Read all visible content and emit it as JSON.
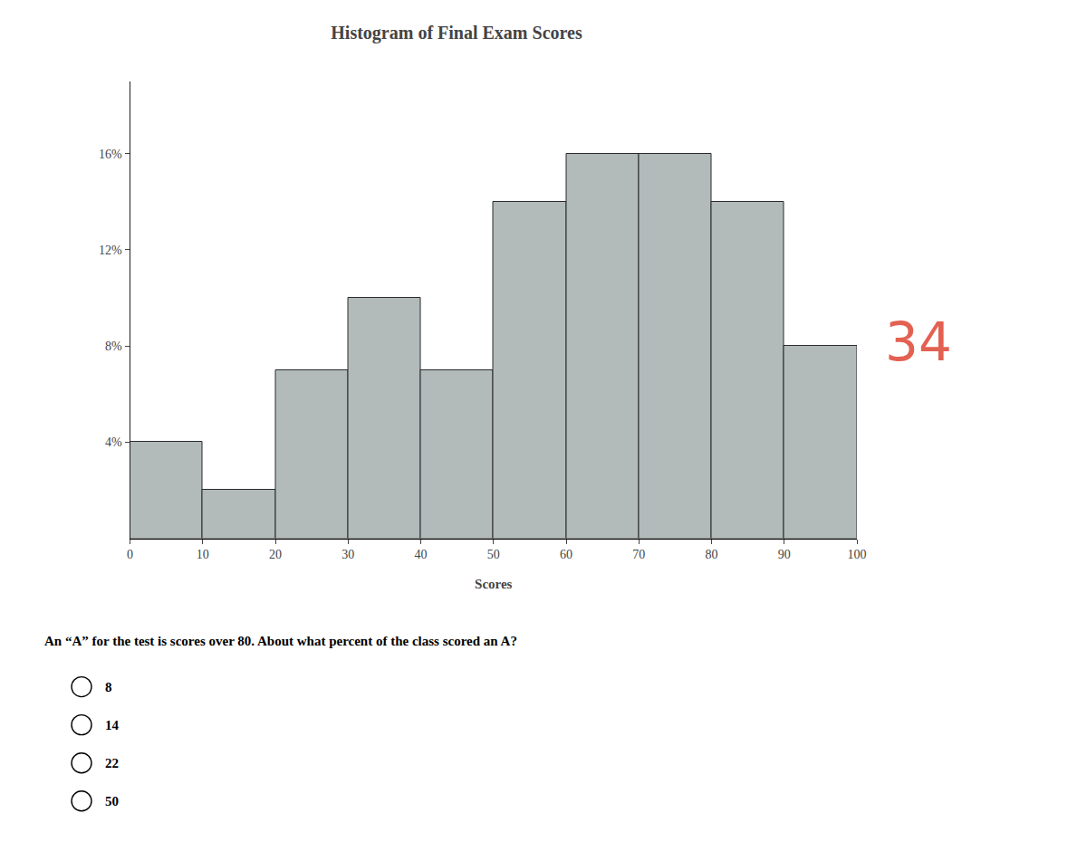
{
  "chart_data": {
    "type": "histogram",
    "title": "Histogram of Final Exam Scores",
    "x_label": "Scores",
    "bins": [
      0,
      10,
      20,
      30,
      40,
      50,
      60,
      70,
      80,
      90,
      100
    ],
    "values": [
      4,
      2,
      7,
      10,
      7,
      14,
      16,
      16,
      14,
      8
    ],
    "color": "#b2baba",
    "xlim": [
      0,
      100
    ],
    "xticks": [
      0,
      10,
      20,
      30,
      40,
      50,
      60,
      70,
      80,
      90,
      100
    ],
    "ylim": [
      0,
      19
    ],
    "yticks": [
      {
        "value": 4,
        "label": "4%"
      },
      {
        "value": 8,
        "label": "8%"
      },
      {
        "value": 12,
        "label": "12%"
      },
      {
        "value": 16,
        "label": "16%"
      }
    ],
    "grid": false,
    "annotations": [
      {
        "text": "An “A” for the test is scores over 80. About what percent of the class scored an A?"
      },
      {
        "text": "8"
      },
      {
        "text": "14"
      },
      {
        "text": "22"
      },
      {
        "text": "50"
      },
      {
        "text": "34",
        "color": "#e05040"
      }
    ]
  }
}
